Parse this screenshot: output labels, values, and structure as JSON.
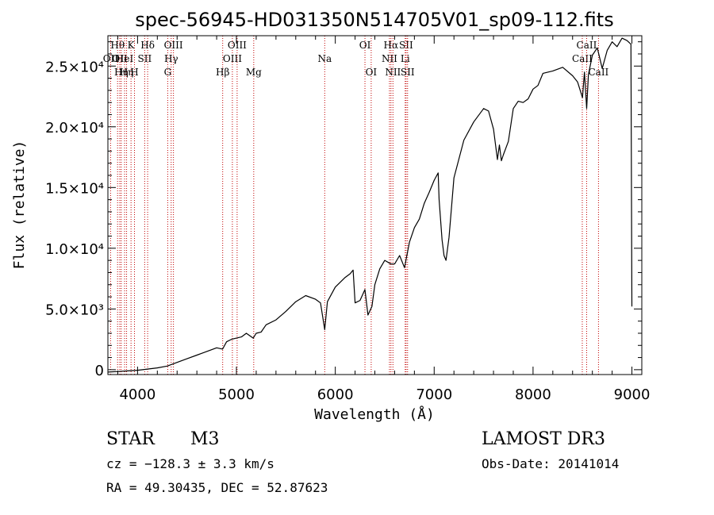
{
  "chart_data": {
    "type": "line",
    "title": "spec-56945-HD031350N514705V01_sp09-112.fits",
    "xlabel": "Wavelength (Å)",
    "ylabel": "Flux (relative)",
    "xlim": [
      3700,
      9100
    ],
    "ylim": [
      -400,
      27500
    ],
    "xticks": [
      {
        "value": 4000,
        "label": "4000"
      },
      {
        "value": 5000,
        "label": "5000"
      },
      {
        "value": 6000,
        "label": "6000"
      },
      {
        "value": 7000,
        "label": "7000"
      },
      {
        "value": 8000,
        "label": "8000"
      },
      {
        "value": 9000,
        "label": "9000"
      }
    ],
    "yticks": [
      {
        "value": 0,
        "label": "0"
      },
      {
        "value": 5000,
        "label": "5.0×10³"
      },
      {
        "value": 10000,
        "label": "1.0×10⁴"
      },
      {
        "value": 15000,
        "label": "1.5×10⁴"
      },
      {
        "value": 20000,
        "label": "2.0×10⁴"
      },
      {
        "value": 25000,
        "label": "2.5×10⁴"
      }
    ],
    "series": [
      {
        "name": "flux",
        "x": [
          3700,
          3800,
          3900,
          4000,
          4100,
          4200,
          4300,
          4400,
          4500,
          4600,
          4700,
          4800,
          4860,
          4900,
          4950,
          5000,
          5050,
          5100,
          5170,
          5200,
          5250,
          5300,
          5400,
          5500,
          5600,
          5700,
          5800,
          5850,
          5893,
          5920,
          6000,
          6100,
          6150,
          6180,
          6200,
          6250,
          6300,
          6330,
          6370,
          6400,
          6450,
          6500,
          6563,
          6600,
          6650,
          6700,
          6750,
          6800,
          6850,
          6900,
          6950,
          7000,
          7040,
          7050,
          7080,
          7100,
          7120,
          7150,
          7200,
          7300,
          7400,
          7500,
          7550,
          7600,
          7640,
          7660,
          7680,
          7700,
          7750,
          7800,
          7850,
          7900,
          7950,
          8000,
          8050,
          8100,
          8200,
          8300,
          8400,
          8450,
          8500,
          8520,
          8542,
          8560,
          8600,
          8650,
          8700,
          8750,
          8800,
          8850,
          8900,
          8950,
          8990,
          9000
        ],
        "y": [
          -200,
          -150,
          -100,
          -50,
          50,
          150,
          300,
          600,
          900,
          1200,
          1500,
          1800,
          1700,
          2300,
          2500,
          2600,
          2700,
          3000,
          2600,
          3000,
          3100,
          3700,
          4100,
          4800,
          5600,
          6100,
          5800,
          5500,
          3300,
          5600,
          6800,
          7600,
          7900,
          8200,
          5500,
          5700,
          6600,
          4500,
          5200,
          7000,
          8300,
          9000,
          8700,
          8700,
          9400,
          8400,
          10500,
          11700,
          12400,
          13700,
          14600,
          15600,
          16200,
          14000,
          10700,
          9400,
          9000,
          10900,
          15800,
          18900,
          20400,
          21500,
          21300,
          19800,
          17300,
          18500,
          17200,
          17700,
          18800,
          21500,
          22100,
          22000,
          22300,
          23100,
          23400,
          24400,
          24600,
          24900,
          24200,
          23700,
          22400,
          24500,
          21500,
          24300,
          25900,
          26500,
          24800,
          26300,
          27000,
          26600,
          27300,
          27100,
          26800,
          5200
        ]
      }
    ],
    "spectral_lines": [
      {
        "wavelength": 3727,
        "label": "OII",
        "row": 2
      },
      {
        "wavelength": 3798,
        "label": "Hθ",
        "row": 1
      },
      {
        "wavelength": 3820,
        "label": "OII",
        "row": 2
      },
      {
        "wavelength": 3835,
        "label": "Hη",
        "row": 3
      },
      {
        "wavelength": 3869,
        "label": "HeI",
        "row": 2
      },
      {
        "wavelength": 3889,
        "label": "Hη",
        "row": 3
      },
      {
        "wavelength": 3934,
        "label": "K",
        "row": 1
      },
      {
        "wavelength": 3969,
        "label": "H",
        "row": 3
      },
      {
        "wavelength": 4072,
        "label": "SII",
        "row": 2
      },
      {
        "wavelength": 4102,
        "label": "Hδ",
        "row": 1
      },
      {
        "wavelength": 4305,
        "label": "G",
        "row": 3
      },
      {
        "wavelength": 4340,
        "label": "Hγ",
        "row": 2
      },
      {
        "wavelength": 4363,
        "label": "OIII",
        "row": 1
      },
      {
        "wavelength": 4861,
        "label": "Hβ",
        "row": 3
      },
      {
        "wavelength": 4959,
        "label": "OIII",
        "row": 2
      },
      {
        "wavelength": 5007,
        "label": "OIII",
        "row": 1
      },
      {
        "wavelength": 5175,
        "label": "Mg",
        "row": 3
      },
      {
        "wavelength": 5893,
        "label": "Na",
        "row": 2
      },
      {
        "wavelength": 6300,
        "label": "OI",
        "row": 1
      },
      {
        "wavelength": 6363,
        "label": "OI",
        "row": 3
      },
      {
        "wavelength": 6548,
        "label": "NII",
        "row": 2
      },
      {
        "wavelength": 6563,
        "label": "Hα",
        "row": 1
      },
      {
        "wavelength": 6583,
        "label": "NII",
        "row": 3
      },
      {
        "wavelength": 6707,
        "label": "Li",
        "row": 2
      },
      {
        "wavelength": 6716,
        "label": "SII",
        "row": 1
      },
      {
        "wavelength": 6731,
        "label": "SII",
        "row": 3
      },
      {
        "wavelength": 8498,
        "label": "CaII",
        "row": 2
      },
      {
        "wavelength": 8542,
        "label": "CaII",
        "row": 1
      },
      {
        "wavelength": 8662,
        "label": "CaII",
        "row": 3
      }
    ],
    "line_color": "#000000",
    "marker_color": "#c00000"
  },
  "info": {
    "object_class": "STAR",
    "subclass": "M3",
    "survey": "LAMOST DR3",
    "cz": "cz = −128.3 ± 3.3 km/s",
    "obs_date": "Obs-Date: 20141014",
    "coords": "RA =  49.30435, DEC =  52.87623"
  }
}
